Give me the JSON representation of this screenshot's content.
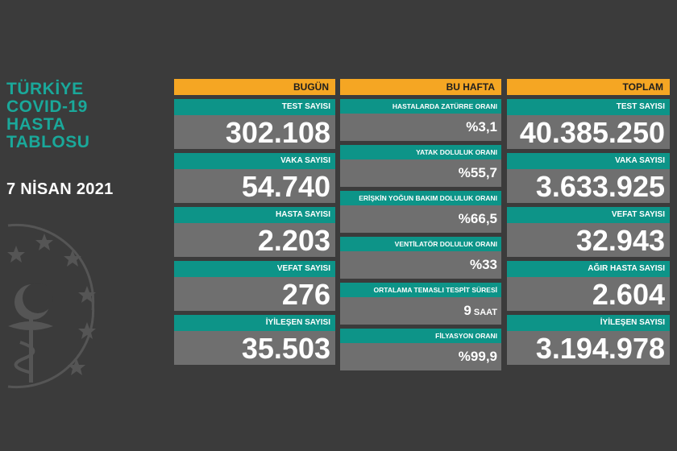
{
  "title": {
    "lines": [
      "TÜRKİYE",
      "COVID-19",
      "HASTA",
      "TABLOSU"
    ]
  },
  "date": "7 NİSAN 2021",
  "columns": {
    "bugun": {
      "header": "BUGÜN",
      "cards": [
        {
          "label": "TEST SAYISI",
          "value": "302.108"
        },
        {
          "label": "VAKA SAYISI",
          "value": "54.740"
        },
        {
          "label": "HASTA SAYISI",
          "value": "2.203"
        },
        {
          "label": "VEFAT SAYISI",
          "value": "276"
        },
        {
          "label": "İYİLEŞEN SAYISI",
          "value": "35.503"
        }
      ]
    },
    "hafta": {
      "header": "BU HAFTA",
      "cards": [
        {
          "label": "HASTALARDA ZATÜRRE ORANI",
          "value": "%3,1"
        },
        {
          "label": "YATAK DOLULUK ORANI",
          "value": "%55,7"
        },
        {
          "label": "ERİŞKİN YOĞUN BAKIM DOLULUK ORANI",
          "value": "%66,5"
        },
        {
          "label": "VENTİLATÖR DOLULUK ORANI",
          "value": "%33"
        },
        {
          "label": "ORTALAMA TEMASLI TESPİT SÜRESİ",
          "value": "9",
          "unit": "SAAT"
        },
        {
          "label": "FİLYASYON ORANI",
          "value": "%99,9"
        }
      ]
    },
    "toplam": {
      "header": "TOPLAM",
      "cards": [
        {
          "label": "TEST SAYISI",
          "value": "40.385.250"
        },
        {
          "label": "VAKA SAYISI",
          "value": "3.633.925"
        },
        {
          "label": "VEFAT SAYISI",
          "value": "32.943"
        },
        {
          "label": "AĞIR HASTA SAYISI",
          "value": "2.604"
        },
        {
          "label": "İYİLEŞEN SAYISI",
          "value": "3.194.978"
        }
      ]
    }
  },
  "colors": {
    "background": "#3b3b3b",
    "header": "#f5a623",
    "label": "#0d9488",
    "value_bg": "#6f6f6f",
    "title": "#1aa89a"
  },
  "icons": {
    "emblem": "ministry-emblem-icon"
  }
}
